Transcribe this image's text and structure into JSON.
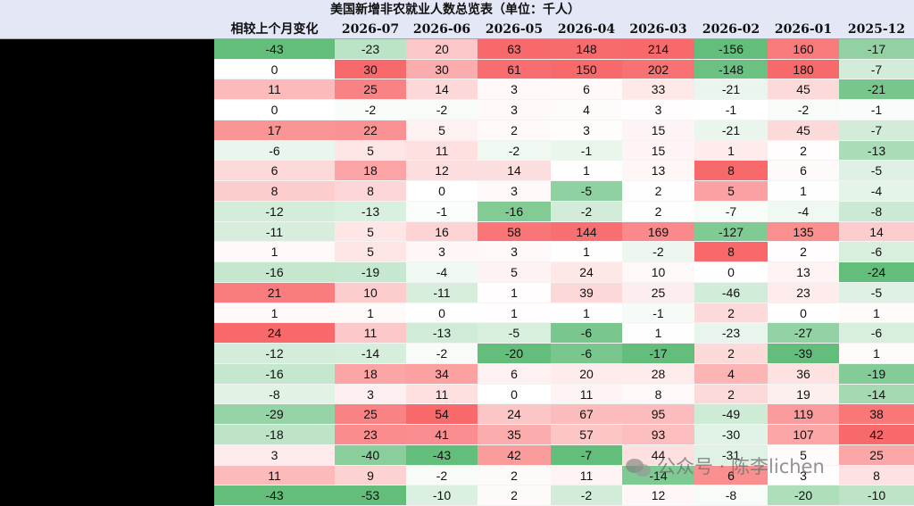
{
  "title": "美国新增非农就业人数总览表（单位：千人）",
  "table": {
    "columns": [
      "相较上个月变化",
      "2026-07",
      "2026-06",
      "2026-05",
      "2026-04",
      "2026-03",
      "2026-02",
      "2026-01",
      "2025-12"
    ],
    "rows": [
      [
        -43,
        -23,
        20,
        63,
        148,
        214,
        -156,
        160,
        -17
      ],
      [
        0,
        30,
        30,
        61,
        150,
        202,
        -148,
        180,
        -7
      ],
      [
        11,
        25,
        14,
        3,
        6,
        33,
        -21,
        45,
        -21
      ],
      [
        0,
        -2,
        -2,
        3,
        4,
        3,
        -1,
        -2,
        -1
      ],
      [
        17,
        22,
        5,
        2,
        3,
        15,
        -21,
        45,
        -7
      ],
      [
        -6,
        5,
        11,
        -2,
        -1,
        15,
        1,
        2,
        -13
      ],
      [
        6,
        18,
        12,
        14,
        1,
        13,
        8,
        6,
        -5
      ],
      [
        8,
        8,
        0,
        3,
        -5,
        2,
        5,
        1,
        -4
      ],
      [
        -12,
        -13,
        -1,
        -16,
        -2,
        2,
        -7,
        -4,
        -8
      ],
      [
        -11,
        5,
        16,
        58,
        144,
        169,
        -127,
        135,
        14
      ],
      [
        1,
        5,
        3,
        3,
        1,
        -2,
        8,
        2,
        -6
      ],
      [
        -16,
        -19,
        -4,
        5,
        24,
        10,
        0,
        13,
        -24
      ],
      [
        21,
        10,
        -11,
        1,
        39,
        25,
        -46,
        23,
        -5
      ],
      [
        1,
        1,
        0,
        1,
        1,
        -1,
        2,
        0,
        1
      ],
      [
        24,
        11,
        -13,
        -5,
        -6,
        1,
        -23,
        -27,
        -6
      ],
      [
        -12,
        -14,
        -2,
        -20,
        -6,
        -17,
        2,
        -39,
        1
      ],
      [
        -16,
        18,
        34,
        6,
        20,
        28,
        4,
        36,
        -19
      ],
      [
        -8,
        3,
        11,
        0,
        11,
        8,
        2,
        19,
        -14
      ],
      [
        -29,
        25,
        54,
        24,
        67,
        95,
        -49,
        119,
        38
      ],
      [
        -18,
        23,
        41,
        35,
        57,
        93,
        -30,
        107,
        42
      ],
      [
        3,
        -40,
        -43,
        42,
        -7,
        44,
        -31,
        5,
        25
      ],
      [
        11,
        9,
        -2,
        2,
        11,
        -14,
        6,
        3,
        8
      ],
      [
        -43,
        -53,
        -10,
        2,
        -2,
        12,
        -8,
        -20,
        -10
      ]
    ],
    "colors": {
      "high": "#f8696b",
      "low": "#63be7b"
    }
  },
  "watermark": "公众号 · 陈李lichen"
}
